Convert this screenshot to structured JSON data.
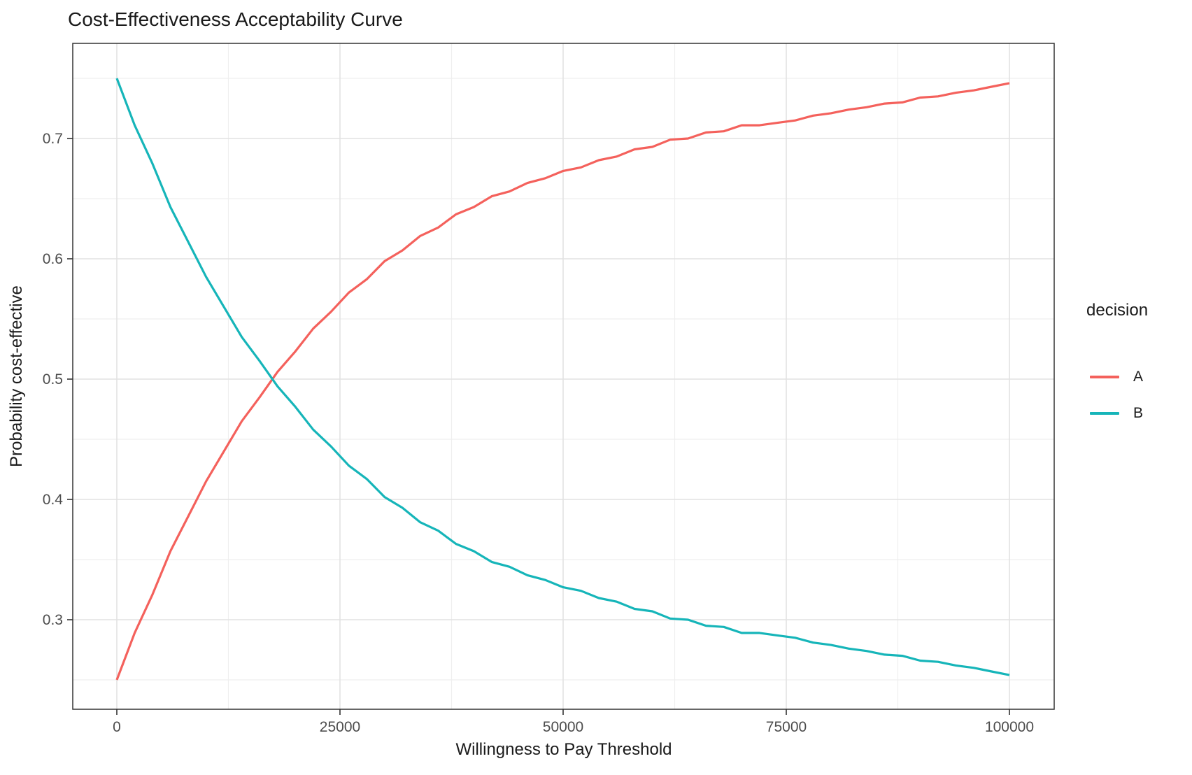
{
  "figure": {
    "title": "Cost-Effectiveness Acceptability Curve"
  },
  "chart_data": {
    "type": "line",
    "title": "Cost-Effectiveness Acceptability Curve",
    "xlabel": "Willingness to Pay Threshold",
    "ylabel": "Probability cost-effective",
    "legend_title": "decision",
    "legend_position": "right",
    "grid": true,
    "xlim": [
      0,
      100000
    ],
    "ylim": [
      0.25,
      0.75
    ],
    "x_ticks": [
      0,
      25000,
      50000,
      75000,
      100000
    ],
    "x_tick_labels": [
      "0",
      "25000",
      "50000",
      "75000",
      "100000"
    ],
    "y_ticks": [
      0.3,
      0.4,
      0.5,
      0.6,
      0.7
    ],
    "y_tick_labels": [
      "0.3",
      "0.4",
      "0.5",
      "0.6",
      "0.7"
    ],
    "x_minor_ticks": [
      12500,
      37500,
      62500,
      87500
    ],
    "y_minor_ticks": [
      0.25,
      0.35,
      0.45,
      0.55,
      0.65,
      0.75
    ],
    "x": [
      0,
      2000,
      4000,
      6000,
      8000,
      10000,
      12000,
      14000,
      16000,
      18000,
      20000,
      22000,
      24000,
      26000,
      28000,
      30000,
      32000,
      34000,
      36000,
      38000,
      40000,
      42000,
      44000,
      46000,
      48000,
      50000,
      52000,
      54000,
      56000,
      58000,
      60000,
      62000,
      64000,
      66000,
      68000,
      70000,
      72000,
      74000,
      76000,
      78000,
      80000,
      82000,
      84000,
      86000,
      88000,
      90000,
      92000,
      94000,
      96000,
      98000,
      100000
    ],
    "series": [
      {
        "name": "A",
        "color": "#F4615C",
        "values": [
          0.25,
          0.289,
          0.321,
          0.357,
          0.386,
          0.415,
          0.44,
          0.465,
          0.485,
          0.506,
          0.523,
          0.542,
          0.556,
          0.572,
          0.583,
          0.598,
          0.607,
          0.619,
          0.626,
          0.637,
          0.643,
          0.652,
          0.656,
          0.663,
          0.667,
          0.673,
          0.676,
          0.682,
          0.685,
          0.691,
          0.693,
          0.699,
          0.7,
          0.705,
          0.706,
          0.711,
          0.711,
          0.713,
          0.715,
          0.719,
          0.721,
          0.724,
          0.726,
          0.729,
          0.73,
          0.734,
          0.735,
          0.738,
          0.74,
          0.743,
          0.746
        ]
      },
      {
        "name": "B",
        "color": "#16B5B9",
        "values": [
          0.75,
          0.711,
          0.679,
          0.643,
          0.614,
          0.585,
          0.56,
          0.535,
          0.515,
          0.494,
          0.477,
          0.458,
          0.444,
          0.428,
          0.417,
          0.402,
          0.393,
          0.381,
          0.374,
          0.363,
          0.357,
          0.348,
          0.344,
          0.337,
          0.333,
          0.327,
          0.324,
          0.318,
          0.315,
          0.309,
          0.307,
          0.301,
          0.3,
          0.295,
          0.294,
          0.289,
          0.289,
          0.287,
          0.285,
          0.281,
          0.279,
          0.276,
          0.274,
          0.271,
          0.27,
          0.266,
          0.265,
          0.262,
          0.26,
          0.257,
          0.254
        ]
      }
    ],
    "theme": {
      "background": "#FFFFFF",
      "panel_background": "#FFFFFF",
      "panel_border": "#333333",
      "grid_major": "#E2E2E2",
      "grid_minor": "#EFEFEF",
      "tick_mark_color": "#333333",
      "tick_label_color": "#4D4D4D",
      "text_color": "#1A1A1A"
    }
  }
}
